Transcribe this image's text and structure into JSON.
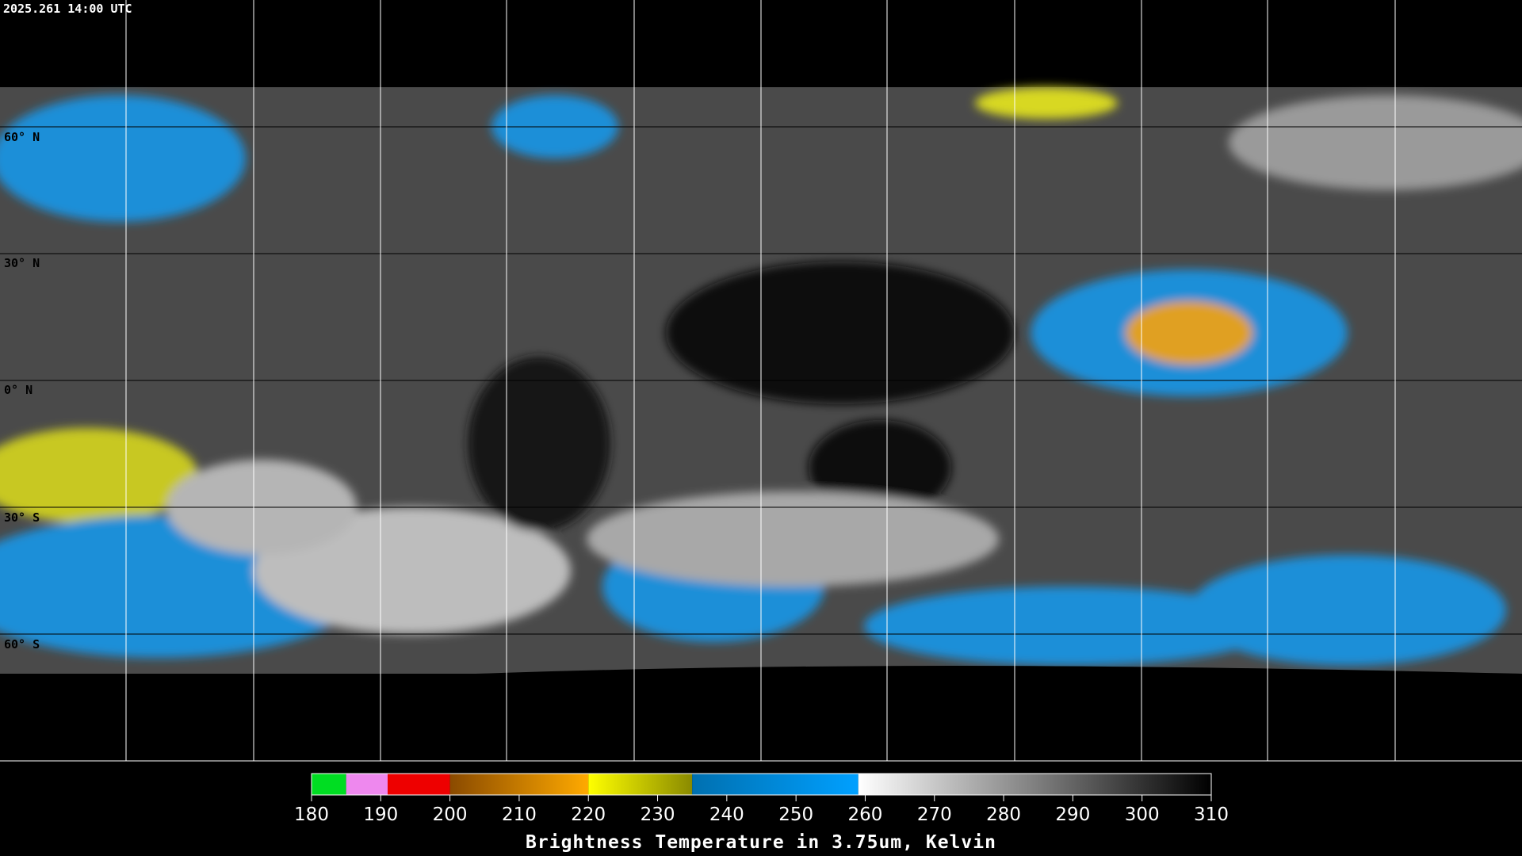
{
  "timestamp": "2025.261 14:00 UTC",
  "latitude_labels": [
    "60° N",
    "30° N",
    "0° N",
    "30° S",
    "60° S"
  ],
  "colorbar": {
    "title": "Brightness Temperature in 3.75um, Kelvin",
    "range": [
      180,
      310
    ],
    "ticks": [
      180,
      190,
      200,
      210,
      220,
      230,
      240,
      250,
      260,
      270,
      280,
      290,
      300,
      310
    ],
    "segments": [
      {
        "from": 180,
        "to": 185,
        "colors": [
          "#00dd22",
          "#00dd22"
        ]
      },
      {
        "from": 185,
        "to": 191,
        "colors": [
          "#ee88ee",
          "#ee88ee"
        ]
      },
      {
        "from": 191,
        "to": 200,
        "colors": [
          "#ee0000",
          "#ee0000"
        ]
      },
      {
        "from": 200,
        "to": 220,
        "colors": [
          "#8a4a00",
          "#ffaa00"
        ]
      },
      {
        "from": 220,
        "to": 235,
        "colors": [
          "#ffff00",
          "#8a8a00"
        ]
      },
      {
        "from": 235,
        "to": 259,
        "colors": [
          "#0070b0",
          "#00a0ff"
        ]
      },
      {
        "from": 259,
        "to": 310,
        "colors": [
          "#ffffff",
          "#000000"
        ]
      }
    ]
  }
}
